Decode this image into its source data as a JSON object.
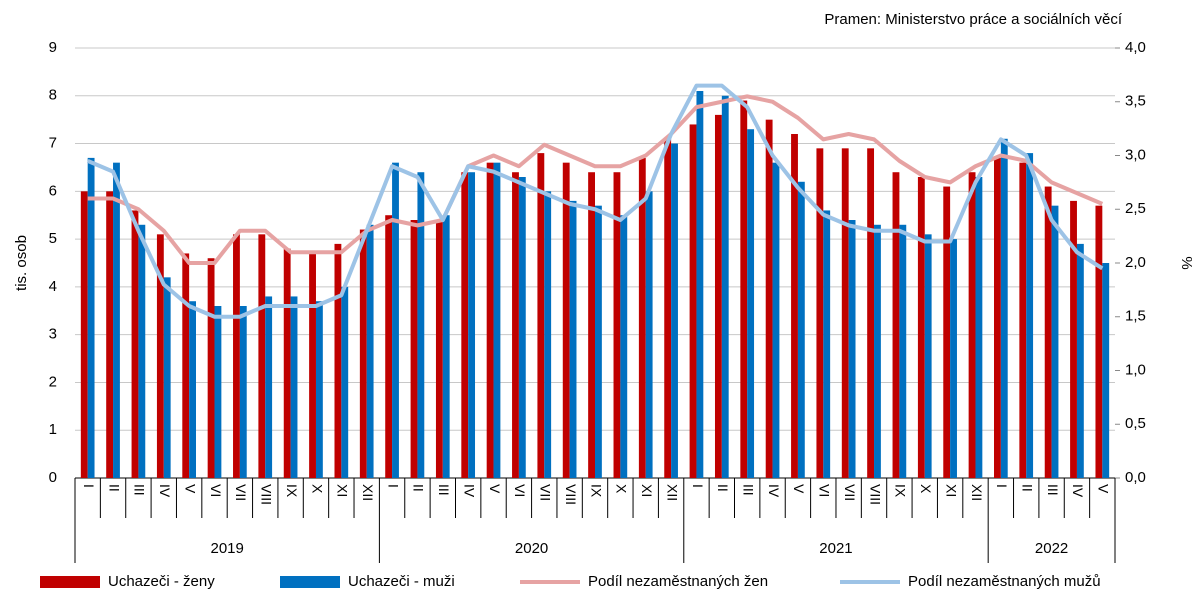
{
  "chart_data": {
    "type": "bar_line",
    "source": "Pramen:  Ministerstvo práce a sociálních věcí",
    "ylabel": "tis. osob",
    "y2label": "%",
    "categories": [
      "I",
      "II",
      "III",
      "IV",
      "V",
      "VI",
      "VII",
      "VIII",
      "IX",
      "X",
      "XI",
      "XII",
      "I",
      "II",
      "III",
      "IV",
      "V",
      "VI",
      "VII",
      "VIII",
      "IX",
      "X",
      "XI",
      "XII",
      "I",
      "II",
      "III",
      "IV",
      "V",
      "VI",
      "VII",
      "VIII",
      "IX",
      "X",
      "XI",
      "XII",
      "I",
      "II",
      "III",
      "IV",
      "V"
    ],
    "years": [
      "2019",
      "2020",
      "2021",
      "2022"
    ],
    "ylim": [
      0,
      9
    ],
    "yticks": [
      0,
      1,
      2,
      3,
      4,
      5,
      6,
      7,
      8,
      9
    ],
    "y2lim": [
      0,
      4
    ],
    "y2ticks": [
      {
        "value": 0,
        "label": "0,0"
      },
      {
        "value": 0.5,
        "label": "0,5"
      },
      {
        "value": 1,
        "label": "1,0"
      },
      {
        "value": 1.5,
        "label": "1,5"
      },
      {
        "value": 2,
        "label": "2,0"
      },
      {
        "value": 2.5,
        "label": "2,5"
      },
      {
        "value": 3,
        "label": "3,0"
      },
      {
        "value": 3.5,
        "label": "3,5"
      },
      {
        "value": 4,
        "label": "4,0"
      }
    ],
    "grid": true,
    "series": [
      {
        "name": "Uchazeči - ženy",
        "kind": "bar",
        "color": "#c00000",
        "values": [
          6.0,
          6.0,
          5.6,
          5.1,
          4.7,
          4.6,
          5.1,
          5.1,
          4.8,
          4.7,
          4.9,
          5.2,
          5.5,
          5.4,
          5.4,
          6.4,
          6.6,
          6.4,
          6.8,
          6.6,
          6.4,
          6.4,
          6.7,
          7.1,
          7.4,
          7.6,
          7.9,
          7.5,
          7.2,
          6.9,
          6.9,
          6.9,
          6.4,
          6.3,
          6.1,
          6.4,
          6.7,
          6.6,
          6.1,
          5.8,
          5.7
        ]
      },
      {
        "name": "Uchazeči - muži",
        "kind": "bar",
        "color": "#0070c0",
        "values": [
          6.7,
          6.6,
          5.3,
          4.2,
          3.7,
          3.6,
          3.6,
          3.8,
          3.8,
          3.7,
          4.0,
          5.3,
          6.6,
          6.4,
          5.5,
          6.4,
          6.6,
          6.3,
          6.0,
          5.8,
          5.7,
          5.5,
          6.0,
          7.0,
          8.1,
          8.0,
          7.3,
          6.6,
          6.2,
          5.6,
          5.4,
          5.3,
          5.3,
          5.1,
          5.0,
          6.3,
          7.1,
          6.8,
          5.7,
          4.9,
          4.5
        ]
      },
      {
        "name": "Podíl nezaměstnaných žen",
        "kind": "line",
        "axis": "y2",
        "color": "#e6a3a3",
        "values": [
          2.6,
          2.6,
          2.5,
          2.3,
          2.0,
          2.0,
          2.3,
          2.3,
          2.1,
          2.1,
          2.1,
          2.3,
          2.4,
          2.35,
          2.4,
          2.9,
          3.0,
          2.9,
          3.1,
          3.0,
          2.9,
          2.9,
          3.0,
          3.2,
          3.45,
          3.5,
          3.55,
          3.5,
          3.35,
          3.15,
          3.2,
          3.15,
          2.95,
          2.8,
          2.75,
          2.9,
          3.0,
          2.95,
          2.75,
          2.65,
          2.55
        ]
      },
      {
        "name": "Podíl nezaměstnaných mužů",
        "kind": "line",
        "axis": "y2",
        "color": "#9dc3e6",
        "values": [
          2.95,
          2.85,
          2.3,
          1.8,
          1.6,
          1.5,
          1.5,
          1.6,
          1.6,
          1.6,
          1.7,
          2.3,
          2.9,
          2.8,
          2.4,
          2.9,
          2.85,
          2.75,
          2.65,
          2.55,
          2.5,
          2.4,
          2.6,
          3.2,
          3.65,
          3.65,
          3.45,
          3.0,
          2.7,
          2.45,
          2.35,
          2.3,
          2.3,
          2.2,
          2.2,
          2.75,
          3.15,
          3.0,
          2.4,
          2.1,
          1.95
        ]
      }
    ]
  }
}
